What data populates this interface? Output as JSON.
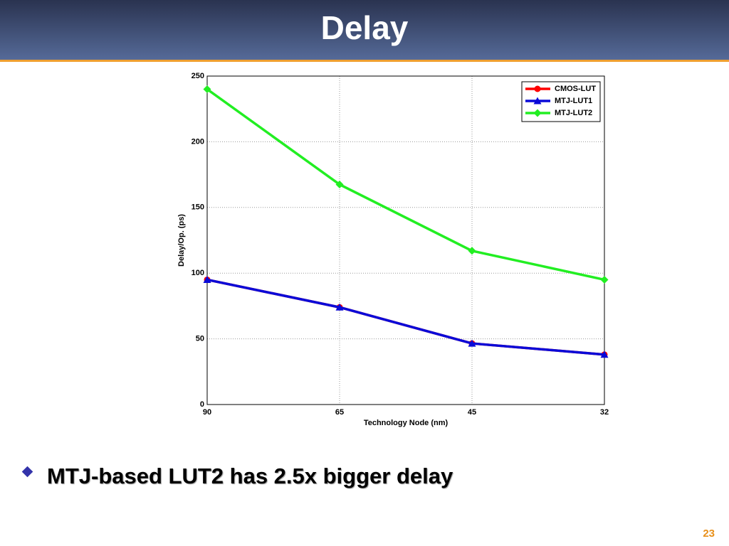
{
  "header": {
    "title": "Delay"
  },
  "chart_data": {
    "type": "line",
    "x_label": "Technology Node (nm)",
    "y_label": "Delay/Op. (ps)",
    "categories": [
      "90",
      "65",
      "45",
      "32"
    ],
    "series": [
      {
        "name": "CMOS-LUT",
        "color": "#ff0000",
        "marker": "circle",
        "values": [
          95,
          74,
          46.5,
          38
        ]
      },
      {
        "name": "MTJ-LUT1",
        "color": "#0a0ad8",
        "marker": "triangle",
        "values": [
          95,
          74,
          46.5,
          38
        ]
      },
      {
        "name": "MTJ-LUT2",
        "color": "#22ee22",
        "marker": "diamond",
        "values": [
          240,
          167.5,
          117,
          95
        ]
      }
    ],
    "ylim": [
      0,
      250
    ],
    "yticks": [
      0,
      50,
      100,
      150,
      200,
      250
    ],
    "grid": true,
    "legend": "upper right"
  },
  "bullets": [
    "MTJ-based LUT2 has 2.5x bigger delay"
  ],
  "page_number": "23"
}
